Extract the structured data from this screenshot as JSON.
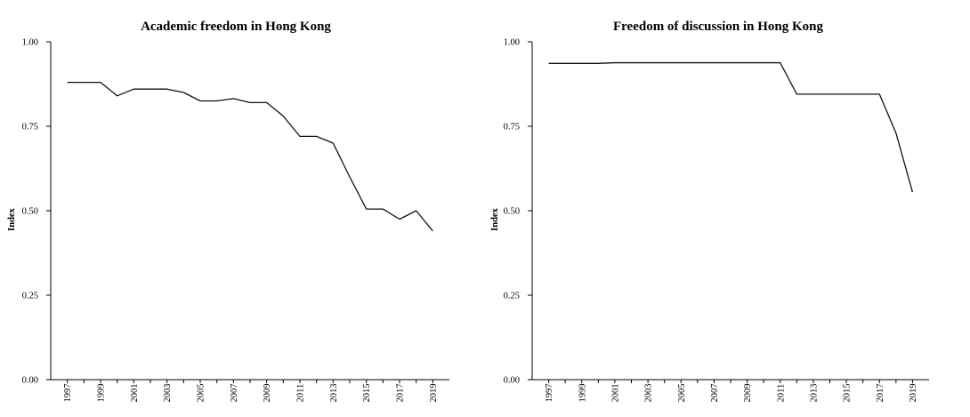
{
  "chart_data": [
    {
      "type": "line",
      "title": "Academic freedom in Hong Kong",
      "xlabel": "",
      "ylabel": "Index",
      "xlim": [
        1996,
        2020
      ],
      "ylim": [
        0,
        1
      ],
      "y_ticks": [
        "0.00",
        "0.25",
        "0.50",
        "0.75",
        "1.00"
      ],
      "x_ticks": [
        "1997",
        "1999",
        "2001",
        "2003",
        "2005",
        "2007",
        "2009",
        "2011",
        "2013",
        "2015",
        "2017",
        "2019"
      ],
      "grid": false,
      "series": [
        {
          "x": [
            1997,
            1998,
            1999,
            2000,
            2001,
            2002,
            2003,
            2004,
            2005,
            2006,
            2007,
            2008,
            2009,
            2010,
            2011,
            2012,
            2013,
            2014,
            2015,
            2016,
            2017,
            2018,
            2019
          ],
          "values": [
            0.88,
            0.88,
            0.88,
            0.84,
            0.86,
            0.86,
            0.86,
            0.85,
            0.825,
            0.825,
            0.832,
            0.82,
            0.82,
            0.78,
            0.72,
            0.72,
            0.7,
            0.6,
            0.505,
            0.505,
            0.475,
            0.5,
            0.44
          ]
        }
      ]
    },
    {
      "type": "line",
      "title": "Freedom of discussion in Hong Kong",
      "xlabel": "",
      "ylabel": "Index",
      "xlim": [
        1996,
        2020
      ],
      "ylim": [
        0,
        1
      ],
      "y_ticks": [
        "0.00",
        "0.25",
        "0.50",
        "0.75",
        "1.00"
      ],
      "x_ticks": [
        "1997",
        "1999",
        "2001",
        "2003",
        "2005",
        "2007",
        "2009",
        "2011",
        "2013",
        "2015",
        "2017",
        "2019"
      ],
      "grid": false,
      "series": [
        {
          "x": [
            1997,
            1998,
            1999,
            2000,
            2001,
            2002,
            2003,
            2004,
            2005,
            2006,
            2007,
            2008,
            2009,
            2010,
            2011,
            2012,
            2013,
            2014,
            2015,
            2016,
            2017,
            2018,
            2019
          ],
          "values": [
            0.936,
            0.936,
            0.936,
            0.936,
            0.938,
            0.938,
            0.938,
            0.938,
            0.938,
            0.938,
            0.938,
            0.938,
            0.938,
            0.938,
            0.938,
            0.845,
            0.845,
            0.845,
            0.845,
            0.845,
            0.845,
            0.73,
            0.555
          ]
        }
      ]
    }
  ]
}
